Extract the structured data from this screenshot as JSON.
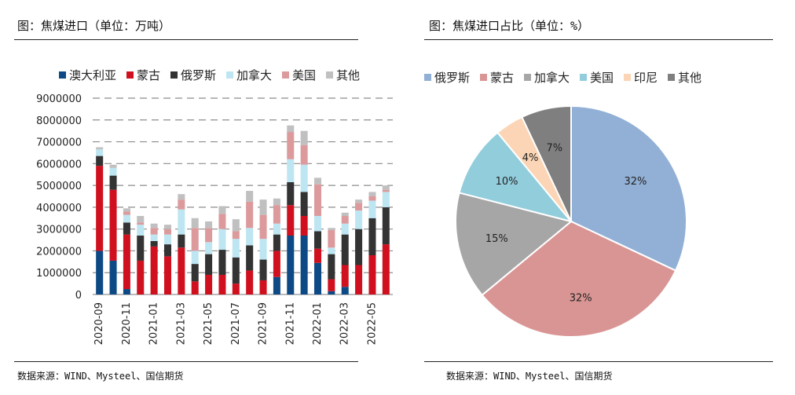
{
  "left_panel": {
    "title": "图：焦煤进口（单位：万吨）",
    "source": "数据来源：WIND、Mysteel、国信期货"
  },
  "right_panel": {
    "title": "图：焦煤进口占比（单位：%）",
    "source": "数据来源：WIND、Mysteel、国信期货"
  },
  "chart_data": [
    {
      "type": "bar",
      "stacked": true,
      "title": "图：焦煤进口（单位：万吨）",
      "xlabel": "",
      "ylabel": "",
      "ylim": [
        0,
        9000000
      ],
      "yticks": [
        0,
        1000000,
        2000000,
        3000000,
        4000000,
        5000000,
        6000000,
        7000000,
        8000000,
        9000000
      ],
      "ytick_labels": [
        "0",
        "1000000",
        "2000000",
        "3000000",
        "4000000",
        "5000000",
        "6000000",
        "7000000",
        "8000000",
        "9000000"
      ],
      "grid": "horizontal-dashed",
      "legend_position": "top",
      "categories": [
        "2020-09",
        "2020-10",
        "2020-11",
        "2020-12",
        "2021-01",
        "2021-02",
        "2021-03",
        "2021-04",
        "2021-05",
        "2021-06",
        "2021-07",
        "2021-08",
        "2021-09",
        "2021-10",
        "2021-11",
        "2021-12",
        "2022-01",
        "2022-02",
        "2022-03",
        "2022-04",
        "2022-05",
        "2022-06"
      ],
      "xtick_labels": [
        "2020-09",
        "2020-11",
        "2021-01",
        "2021-03",
        "2021-05",
        "2021-07",
        "2021-09",
        "2021-11",
        "2022-01",
        "2022-03",
        "2022-05"
      ],
      "series": [
        {
          "name": "澳大利亚",
          "color": "#0d4a85",
          "values": [
            2000000,
            1550000,
            250000,
            0,
            0,
            0,
            0,
            0,
            0,
            0,
            0,
            0,
            0,
            800000,
            2700000,
            2700000,
            1450000,
            150000,
            350000,
            0,
            0,
            0
          ]
        },
        {
          "name": "蒙古",
          "color": "#d0101f",
          "values": [
            3900000,
            3250000,
            2500000,
            1550000,
            2200000,
            1750000,
            2150000,
            600000,
            900000,
            900000,
            500000,
            1100000,
            650000,
            1200000,
            1400000,
            900000,
            650000,
            550000,
            1000000,
            1350000,
            1800000,
            2300000
          ]
        },
        {
          "name": "俄罗斯",
          "color": "#333333",
          "values": [
            450000,
            650000,
            550000,
            1150000,
            250000,
            550000,
            600000,
            800000,
            950000,
            1150000,
            1200000,
            1150000,
            950000,
            750000,
            1050000,
            1100000,
            800000,
            1150000,
            1400000,
            1650000,
            1700000,
            1700000
          ]
        },
        {
          "name": "加拿大",
          "color": "#bde6f2",
          "values": [
            300000,
            350000,
            350000,
            500000,
            300000,
            450000,
            1150000,
            600000,
            550000,
            950000,
            850000,
            800000,
            950000,
            500000,
            1050000,
            1250000,
            700000,
            300000,
            500000,
            850000,
            800000,
            700000
          ]
        },
        {
          "name": "美国",
          "color": "#dc9a9c",
          "values": [
            0,
            0,
            150000,
            100000,
            300000,
            250000,
            450000,
            1050000,
            650000,
            700000,
            350000,
            1200000,
            1100000,
            850000,
            1250000,
            900000,
            1450000,
            800000,
            350000,
            350000,
            200000,
            100000
          ]
        },
        {
          "name": "其他",
          "color": "#c0c0c0",
          "values": [
            100000,
            150000,
            150000,
            300000,
            200000,
            200000,
            250000,
            450000,
            300000,
            350000,
            550000,
            500000,
            700000,
            300000,
            300000,
            650000,
            300000,
            100000,
            150000,
            150000,
            200000,
            200000
          ]
        }
      ]
    },
    {
      "type": "pie",
      "title": "图：焦煤进口占比（单位：%）",
      "legend_position": "top",
      "slices": [
        {
          "name": "俄罗斯",
          "value": 32,
          "label": "32%",
          "color": "#92b0d6"
        },
        {
          "name": "蒙古",
          "value": 32,
          "label": "32%",
          "color": "#d99594"
        },
        {
          "name": "加拿大",
          "value": 15,
          "label": "15%",
          "color": "#a6a6a6"
        },
        {
          "name": "美国",
          "value": 10,
          "label": "10%",
          "color": "#92cddc"
        },
        {
          "name": "印尼",
          "value": 4,
          "label": "4%",
          "color": "#fbd5b5"
        },
        {
          "name": "其他",
          "value": 7,
          "label": "7%",
          "color": "#7f7f7f"
        }
      ]
    }
  ]
}
